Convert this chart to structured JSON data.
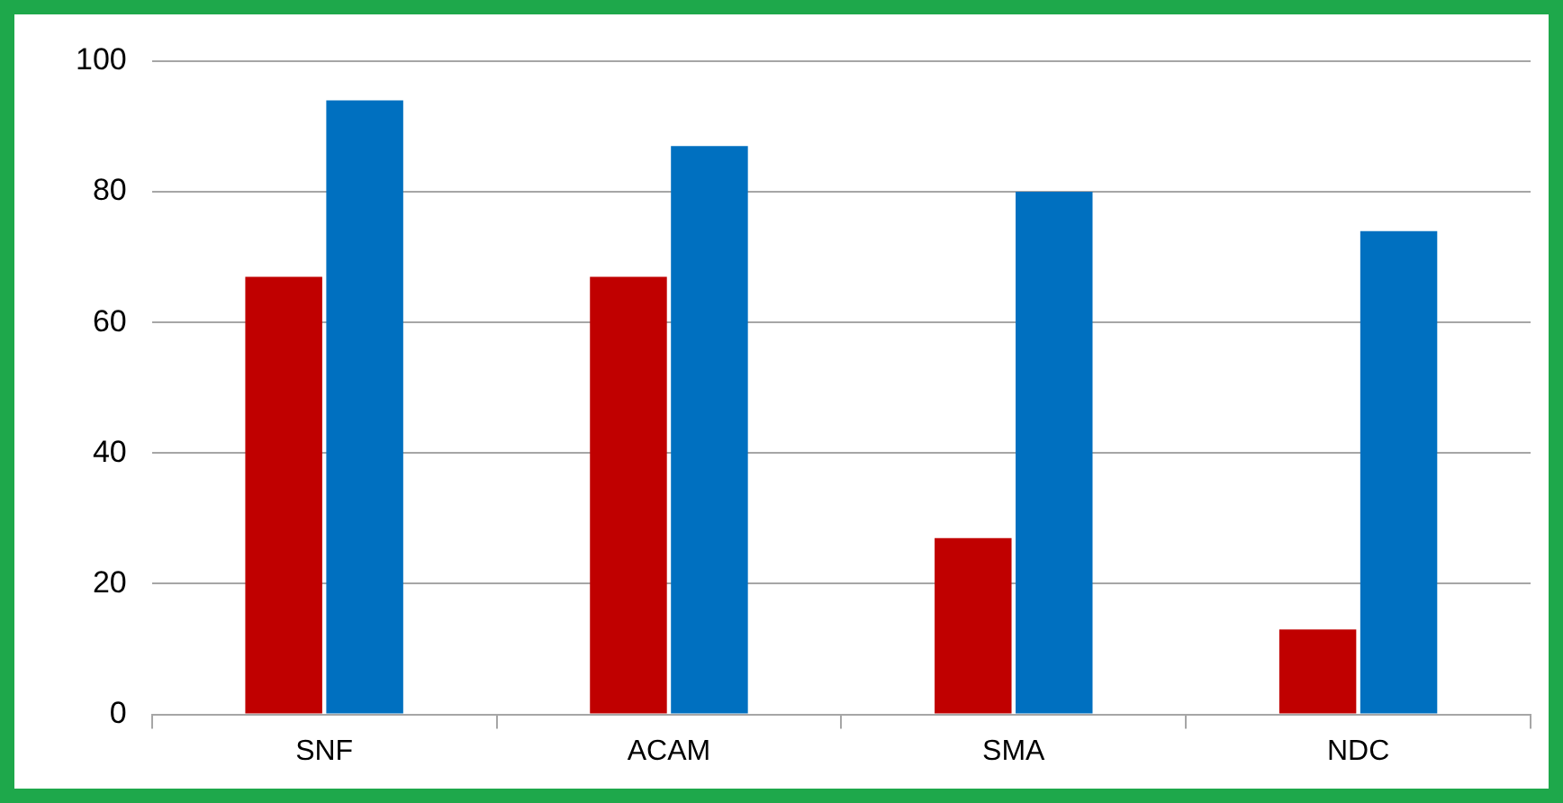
{
  "chart_data": {
    "type": "bar",
    "categories": [
      "SNF",
      "ACAM",
      "SMA",
      "NDC"
    ],
    "series": [
      {
        "color": "#c00000",
        "values": [
          67,
          67,
          27,
          13
        ]
      },
      {
        "color": "#0070c0",
        "values": [
          94,
          87,
          80,
          74
        ]
      }
    ],
    "ylim": [
      0,
      100
    ],
    "yticks": [
      0,
      20,
      40,
      60,
      80,
      100
    ],
    "grid": "y",
    "legend": false
  }
}
